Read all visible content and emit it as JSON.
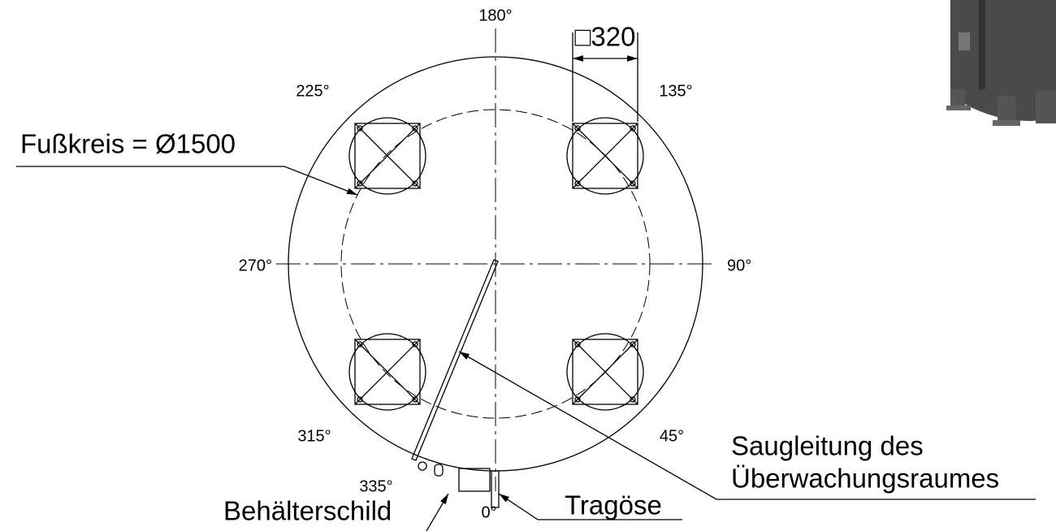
{
  "angles": {
    "a180": "180°",
    "a225": "225°",
    "a135": "135°",
    "a270": "270°",
    "a90": "90°",
    "a315": "315°",
    "a45": "45°",
    "a335": "335°",
    "a0": "0°"
  },
  "dimension": "□320",
  "labels": {
    "foot_circle": "Fußkreis = Ø1500",
    "suction_line_1": "Saugleitung des",
    "suction_line_2": "Überwachungsraumes",
    "nameplate": "Behälterschild",
    "lifting_lug": "Tragöse"
  }
}
